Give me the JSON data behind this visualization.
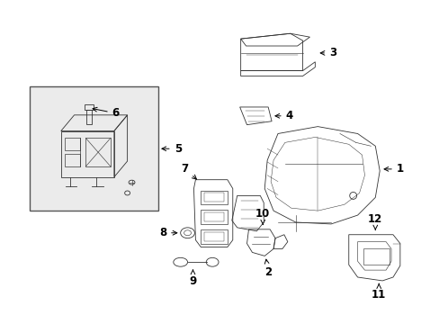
{
  "background_color": "#ffffff",
  "line_color": "#333333",
  "figsize": [
    4.89,
    3.6
  ],
  "dpi": 100,
  "title": "",
  "font_size": 8,
  "label_font_size": 8.5,
  "inset_bg": "#ebebeb"
}
